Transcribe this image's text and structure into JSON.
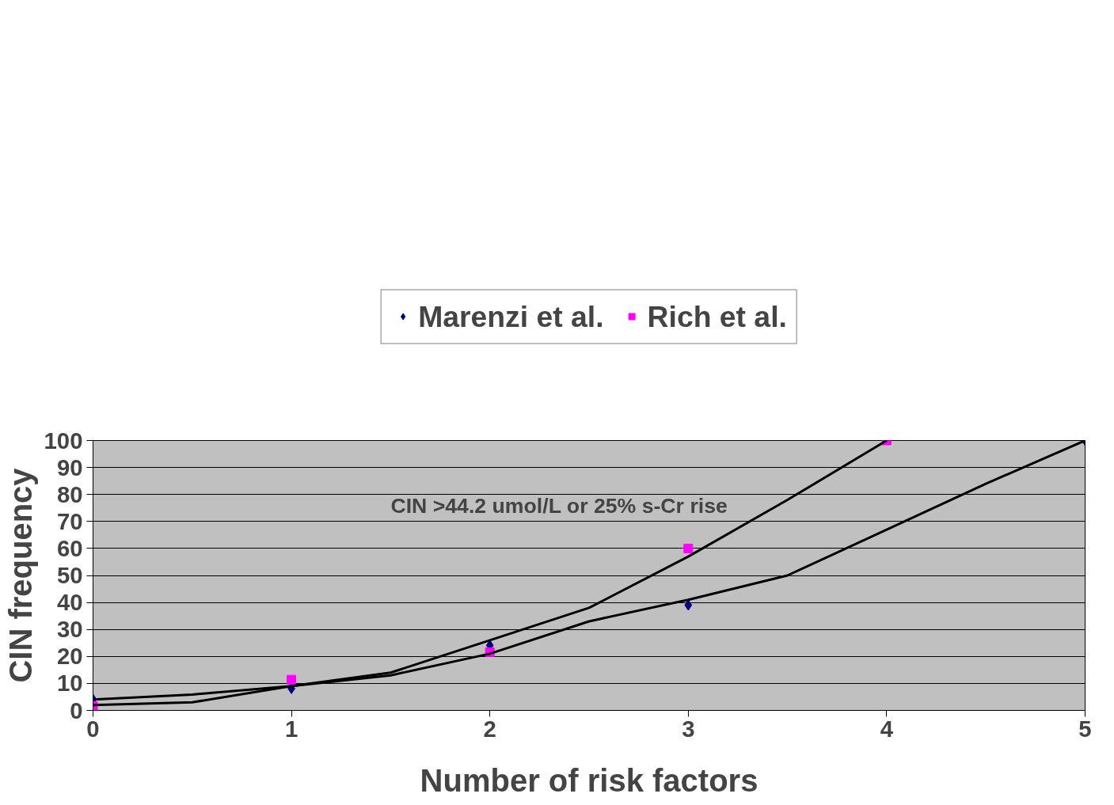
{
  "chart_data": {
    "type": "scatter",
    "xlabel": "Number of risk factors",
    "ylabel": "CIN frequency",
    "annotations": [
      "CIN >44.2 umol/L or 25% s-Cr rise"
    ],
    "xlim": [
      0,
      5
    ],
    "ylim": [
      0,
      100
    ],
    "xticks": [
      0,
      1,
      2,
      3,
      4,
      5
    ],
    "yticks": [
      0,
      10,
      20,
      30,
      40,
      50,
      60,
      70,
      80,
      90,
      100
    ],
    "grid": "y",
    "legend": "top",
    "series": [
      {
        "name": "Marenzi et al.",
        "color": "#000080",
        "marker": "diamond",
        "x": [
          0,
          1,
          2,
          3,
          5
        ],
        "values": [
          4.1,
          8.1,
          24.1,
          39,
          100
        ]
      },
      {
        "name": "Rich et al.",
        "color": "#ff00ff",
        "marker": "square",
        "x": [
          0,
          1,
          2,
          3,
          4
        ],
        "values": [
          1.6,
          11.4,
          21.6,
          60,
          100
        ]
      },
      {
        "type": "line",
        "color": "#000000",
        "marker": "none",
        "x": [
          0,
          0.5,
          1,
          1.5,
          2,
          2.5,
          3,
          3.5,
          4,
          4.5,
          5
        ],
        "values": [
          4,
          5.9,
          9,
          13,
          21,
          33,
          41,
          50,
          67,
          84,
          100
        ]
      },
      {
        "type": "line",
        "color": "#000000",
        "marker": "none",
        "x": [
          0,
          0.5,
          1,
          1.5,
          2,
          2.5,
          3,
          3.5,
          4
        ],
        "values": [
          2,
          3,
          9,
          14,
          26,
          38,
          57,
          78,
          100
        ]
      }
    ]
  }
}
